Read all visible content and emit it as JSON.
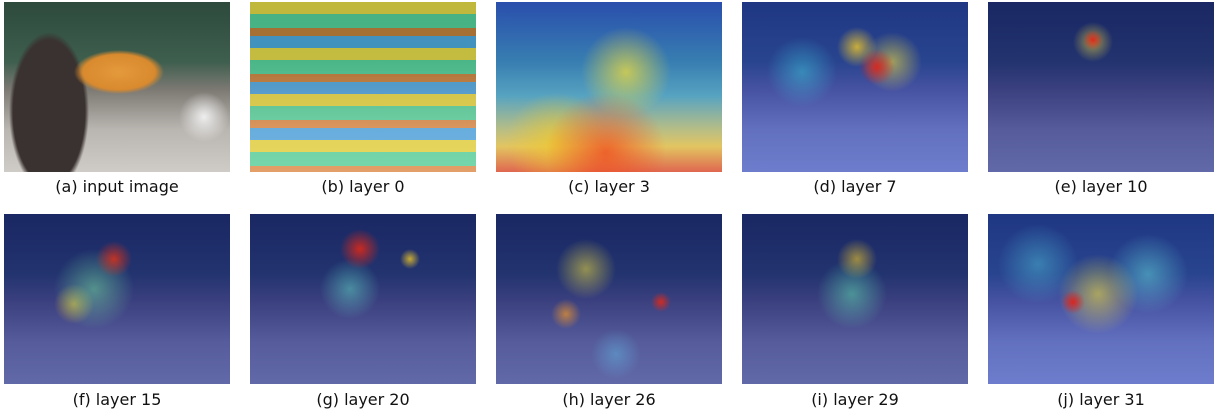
{
  "panels": [
    {
      "caption": "(a) input image"
    },
    {
      "caption": "(b) layer 0"
    },
    {
      "caption": "(c) layer 3"
    },
    {
      "caption": "(d) layer 7"
    },
    {
      "caption": "(e) layer 10"
    },
    {
      "caption": "(f) layer 15"
    },
    {
      "caption": "(g) layer 20"
    },
    {
      "caption": "(h) layer 26"
    },
    {
      "caption": "(i) layer 29"
    },
    {
      "caption": "(j) layer 31"
    }
  ]
}
